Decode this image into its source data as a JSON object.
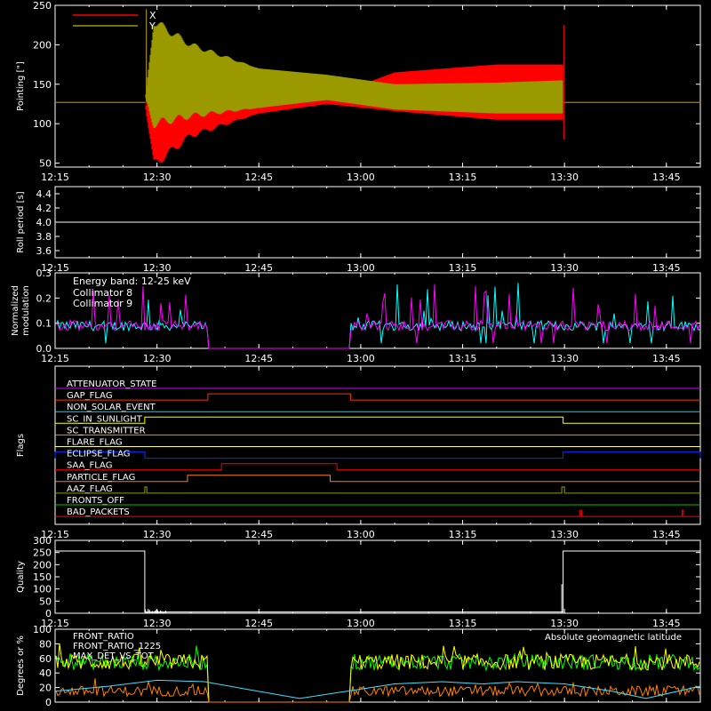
{
  "time_axis": {
    "start_min": 735,
    "end_min": 830,
    "ticks": [
      {
        "t": 735,
        "label": "12:15"
      },
      {
        "t": 750,
        "label": "12:30"
      },
      {
        "t": 765,
        "label": "12:45"
      },
      {
        "t": 780,
        "label": "13:00"
      },
      {
        "t": 795,
        "label": "13:15"
      },
      {
        "t": 810,
        "label": "13:30"
      },
      {
        "t": 825,
        "label": "13:45"
      }
    ]
  },
  "chart_data": [
    {
      "type": "line",
      "title": "",
      "ylabel": "Pointing [\"]",
      "ylim": [
        45,
        250
      ],
      "yticks": [
        50,
        100,
        150,
        200,
        250
      ],
      "grid": false,
      "legend_position": "top-left",
      "series": [
        {
          "name": "X",
          "color": "#ff0000",
          "baseline": 127,
          "envelope_time": [
            748.3,
            749.5,
            755,
            765,
            775,
            785,
            800,
            809.8
          ],
          "envelope_low": [
            127,
            48,
            85,
            113,
            125,
            116,
            105,
            105
          ],
          "envelope_high": [
            127,
            175,
            150,
            140,
            133,
            165,
            175,
            175
          ]
        },
        {
          "name": "Y",
          "color": "#9a9a00",
          "baseline": 127,
          "envelope_time": [
            748.3,
            749.5,
            755,
            765,
            775,
            785,
            800,
            809.8
          ],
          "envelope_low": [
            127,
            100,
            110,
            120,
            130,
            118,
            113,
            113
          ],
          "envelope_high": [
            127,
            230,
            200,
            170,
            162,
            150,
            152,
            155
          ]
        }
      ]
    },
    {
      "type": "line",
      "ylabel": "Roll period [s]",
      "ylim": [
        3.5,
        4.5
      ],
      "yticks": [
        3.6,
        3.8,
        4.0,
        4.2,
        4.4
      ],
      "series": [
        {
          "name": "",
          "color": "#ffffff",
          "value": 4.0
        }
      ]
    },
    {
      "type": "line",
      "ylabel": "Normalized modulation",
      "ylim": [
        0,
        0.3
      ],
      "yticks": [
        0.0,
        0.1,
        0.2,
        0.3
      ],
      "annotation": "Energy band: 12-25 keV",
      "data_gap": [
        757.5,
        778.5
      ],
      "series": [
        {
          "name": "Collimator 8",
          "color": "#00ffff",
          "mean": 0.09
        },
        {
          "name": "Collimator 9",
          "color": "#ff00ff",
          "mean": 0.09
        }
      ]
    },
    {
      "type": "line",
      "ylabel": "Flags",
      "series": [
        {
          "name": "ATTENUATOR_STATE",
          "color": "#d000ff",
          "on": []
        },
        {
          "name": "GAP_FLAG",
          "color": "#ff3000",
          "on": [
            [
              757.5,
              778.5
            ]
          ]
        },
        {
          "name": "NON_SOLAR_EVENT",
          "color": "#00e0e0",
          "on": []
        },
        {
          "name": "SC_IN_SUNLIGHT",
          "color": "#ffff00",
          "on": [
            [
              748.2,
              809.8
            ]
          ]
        },
        {
          "name": "SC_TRANSMITTER",
          "color": "#ff9000",
          "on": []
        },
        {
          "name": "FLARE_FLAG",
          "color": "#ffff60",
          "on": []
        },
        {
          "name": "ECLIPSE_FLAG",
          "color": "#0030ff",
          "on": [
            [
              735,
              748.2
            ],
            [
              809.8,
              830
            ]
          ]
        },
        {
          "name": "SAA_FLAG",
          "color": "#ff0000",
          "on": [
            [
              759.5,
              776.5
            ]
          ]
        },
        {
          "name": "PARTICLE_FLAG",
          "color": "#ff8000",
          "on": [
            [
              754.5,
              775.5
            ]
          ]
        },
        {
          "name": "AAZ_FLAG",
          "color": "#9a9a00",
          "on": [
            [
              748.2,
              748.5
            ],
            [
              809.6,
              810
            ]
          ]
        },
        {
          "name": "FRONTS_OFF",
          "color": "#00c000",
          "on": []
        },
        {
          "name": "BAD_PACKETS",
          "color": "#ff0000",
          "on": [
            [
              812.3,
              812.5
            ],
            [
              827.3,
              827.5
            ]
          ]
        }
      ]
    },
    {
      "type": "line",
      "ylabel": "Quality",
      "ylim": [
        0,
        300
      ],
      "yticks": [
        0,
        50,
        100,
        150,
        200,
        250,
        300
      ],
      "series": [
        {
          "name": "",
          "color": "#ffffff",
          "steps": [
            [
              735,
              256
            ],
            [
              748.2,
              256
            ],
            [
              748.2,
              5
            ],
            [
              809.8,
              5
            ],
            [
              809.8,
              256
            ],
            [
              830,
              256
            ]
          ]
        }
      ]
    },
    {
      "type": "line",
      "ylabel": "Degrees or %",
      "ylim": [
        0,
        100
      ],
      "yticks": [
        0,
        20,
        40,
        60,
        80,
        100
      ],
      "data_gap": [
        757.5,
        778.5
      ],
      "series": [
        {
          "name": "FRONT_RATIO",
          "color": "#ffff00",
          "mean": 55
        },
        {
          "name": "FRONT_RATIO_1225",
          "color": "#00ff00",
          "mean": 55
        },
        {
          "name": "MAX_DET_VS_TOT",
          "color": "#ff8000",
          "mean": 15
        },
        {
          "name": "Absolute geomagnetic latitude",
          "color": "#40e0ff",
          "x": [
            735,
            743,
            750,
            757,
            763,
            771,
            778,
            785,
            792,
            798,
            803,
            810,
            817,
            822,
            830
          ],
          "y": [
            15,
            22,
            30,
            28,
            18,
            5,
            15,
            25,
            28,
            25,
            28,
            25,
            15,
            5,
            22
          ]
        }
      ]
    }
  ]
}
